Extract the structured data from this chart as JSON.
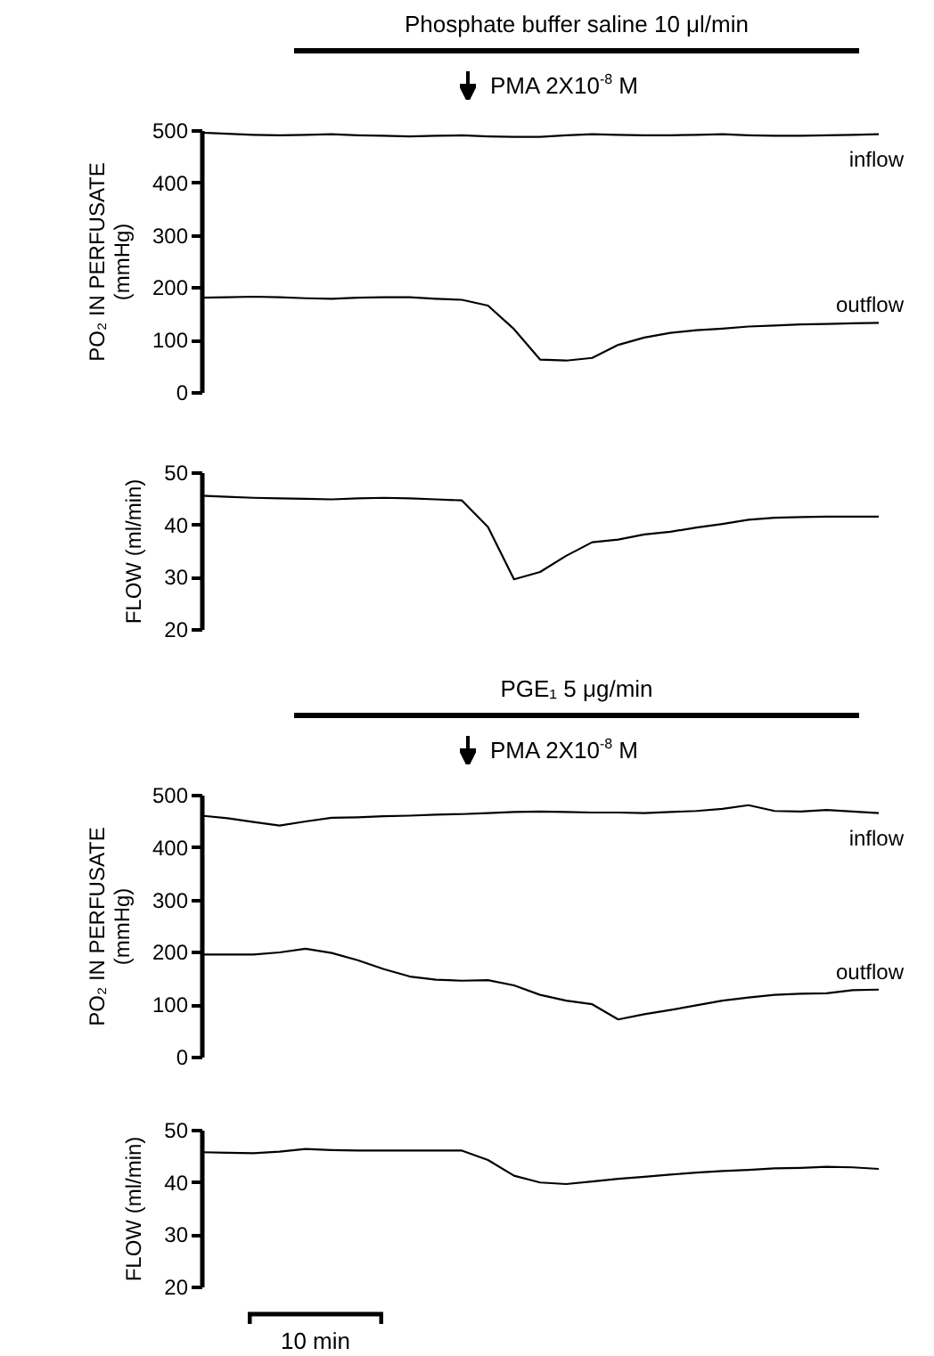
{
  "chart_data": [
    {
      "type": "line",
      "title": "Phosphate buffer saline 10 μl/min",
      "annotations": [
        "PMA 2X10$^{-8}$ M"
      ],
      "ylabel": "PO₂ IN PERFUSATE\n(mmHg)",
      "categories": [
        null,
        null,
        null,
        null,
        null,
        null,
        null,
        null,
        null,
        null,
        null,
        null,
        null,
        null,
        null,
        null,
        null,
        null,
        null,
        null,
        null,
        null,
        null,
        null,
        null,
        null,
        null
      ],
      "ylim": [
        0,
        500
      ],
      "yticks": [
        0,
        100,
        200,
        300,
        400,
        500
      ],
      "tick_labels": "y",
      "series": [
        {
          "name": "inflow",
          "color": "#000000",
          "values": [
            495,
            493,
            491,
            490,
            491,
            492,
            490,
            489,
            488,
            489,
            490,
            488,
            487,
            487,
            490,
            492,
            491,
            490,
            490,
            491,
            492,
            490,
            489,
            489,
            490,
            491,
            492
          ]
        },
        {
          "name": "outflow",
          "color": "#000000",
          "values": [
            180,
            181,
            182,
            181,
            179,
            178,
            180,
            181,
            181,
            178,
            176,
            165,
            120,
            62,
            60,
            65,
            90,
            104,
            113,
            118,
            121,
            125,
            127,
            129,
            130,
            131,
            132
          ]
        }
      ]
    },
    {
      "type": "line",
      "ylabel": "FLOW (ml/min)",
      "categories": [
        null,
        null,
        null,
        null,
        null,
        null,
        null,
        null,
        null,
        null,
        null,
        null,
        null,
        null,
        null,
        null,
        null,
        null,
        null,
        null,
        null,
        null,
        null,
        null,
        null,
        null,
        null
      ],
      "ylim": [
        20,
        50
      ],
      "yticks": [
        20,
        30,
        40,
        50
      ],
      "tick_labels": "y",
      "series": [
        {
          "color": "#000000",
          "values": [
            45.5,
            45.3,
            45.1,
            45,
            44.9,
            44.8,
            45,
            45.1,
            45,
            44.8,
            44.6,
            39.5,
            29.5,
            30.9,
            34,
            36.6,
            37.1,
            38.1,
            38.6,
            39.4,
            40.1,
            40.9,
            41.3,
            41.4,
            41.5,
            41.5,
            41.5
          ]
        }
      ]
    },
    {
      "type": "line",
      "title": "PGE₁ 5 μg/min",
      "annotations": [
        "PMA 2X10$^{-8}$ M"
      ],
      "ylabel": "PO₂ IN PERFUSATE\n(mmHg)",
      "categories": [
        null,
        null,
        null,
        null,
        null,
        null,
        null,
        null,
        null,
        null,
        null,
        null,
        null,
        null,
        null,
        null,
        null,
        null,
        null,
        null,
        null,
        null,
        null,
        null,
        null,
        null,
        null
      ],
      "ylim": [
        0,
        500
      ],
      "yticks": [
        0,
        100,
        200,
        300,
        400,
        500
      ],
      "tick_labels": "y",
      "series": [
        {
          "name": "inflow",
          "color": "#000000",
          "values": [
            460,
            455,
            448,
            441,
            449,
            456,
            457,
            459,
            460,
            462,
            463,
            465,
            467,
            468,
            467,
            466,
            466,
            465,
            467,
            469,
            473,
            480,
            469,
            468,
            471,
            468,
            465
          ]
        },
        {
          "name": "outflow",
          "color": "#000000",
          "values": [
            195,
            195,
            195,
            199,
            206,
            198,
            184,
            167,
            153,
            147,
            145,
            146,
            136,
            118,
            107,
            100,
            71,
            81,
            89,
            98,
            107,
            113,
            118,
            120,
            121,
            127,
            128
          ]
        }
      ]
    },
    {
      "type": "line",
      "ylabel": "FLOW (ml/min)",
      "xlabel": "10 min",
      "categories": [
        null,
        null,
        null,
        null,
        null,
        null,
        null,
        null,
        null,
        null,
        null,
        null,
        null,
        null,
        null,
        null,
        null,
        null,
        null,
        null,
        null,
        null,
        null,
        null,
        null,
        null,
        null
      ],
      "ylim": [
        20,
        50
      ],
      "yticks": [
        20,
        30,
        40,
        50
      ],
      "tick_labels": "y",
      "series": [
        {
          "color": "#000000",
          "values": [
            45.7,
            45.6,
            45.5,
            45.8,
            46.3,
            46.1,
            46,
            46,
            46,
            46,
            46,
            44.2,
            41.2,
            39.9,
            39.6,
            40.1,
            40.6,
            41,
            41.4,
            41.8,
            42.1,
            42.3,
            42.6,
            42.7,
            42.9,
            42.8,
            42.5
          ]
        }
      ]
    }
  ]
}
